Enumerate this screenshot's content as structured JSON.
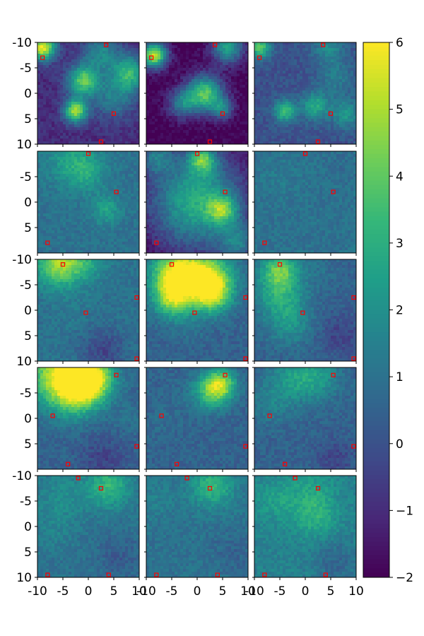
{
  "chart_data": {
    "type": "heatmap",
    "grid": {
      "rows": 5,
      "cols": 3
    },
    "x_ticks": [
      "-10",
      "-5",
      "0",
      "5",
      "10"
    ],
    "y_ticks_row0": [
      "-10",
      "-5",
      "0",
      "5",
      "10"
    ],
    "y_ticks_inner": [
      "-5",
      "0",
      "5"
    ],
    "y_ticks_row2": [
      "-10",
      "-5",
      "0",
      "5",
      "10"
    ],
    "y_ticks_last": [
      "-10",
      "-5",
      "0",
      "5",
      "10"
    ],
    "xlim": [
      -10,
      10
    ],
    "ylim": [
      -10,
      10
    ],
    "y_inverted": true,
    "colormap": "viridis",
    "colorbar": {
      "min": -2,
      "max": 6,
      "ticks": [
        "6",
        "5",
        "4",
        "3",
        "2",
        "1",
        "0",
        "−1",
        "−2"
      ]
    },
    "marker_color": "#ff0000",
    "rows": [
      {
        "markers": [
          [
            3.5,
            -10
          ],
          [
            -9,
            -7
          ],
          [
            5,
            4
          ],
          [
            2.5,
            10
          ]
        ],
        "panels": [
          {
            "background": -1.0,
            "blobs": [
              [
                -9,
                -9,
                1.8,
                6.5
              ],
              [
                -1,
                -2.5,
                2.2,
                4.5
              ],
              [
                -2.5,
                3.5,
                1.6,
                5.5
              ],
              [
                8,
                -4,
                2.5,
                3.5
              ],
              [
                2.5,
                -8,
                2.5,
                2.0
              ],
              [
                5,
                1,
                3.0,
                1.5
              ]
            ]
          },
          {
            "background": -2.0,
            "blobs": [
              [
                -8.5,
                -7.5,
                1.8,
                6.0
              ],
              [
                1.5,
                0,
                2.5,
                4.5
              ],
              [
                6,
                -9,
                2.2,
                3.0
              ],
              [
                -3,
                2,
                2.0,
                1.5
              ],
              [
                5,
                3,
                1.5,
                1.5
              ]
            ]
          },
          {
            "background": 0.0,
            "blobs": [
              [
                -9,
                -9,
                1.5,
                4.5
              ],
              [
                -4,
                3.5,
                1.5,
                4.0
              ],
              [
                2,
                2.5,
                2.0,
                3.0
              ],
              [
                8,
                4,
                2.0,
                2.5
              ],
              [
                4.5,
                -9,
                2.2,
                2.0
              ],
              [
                6,
                -3,
                2.5,
                1.5
              ]
            ]
          }
        ]
      },
      {
        "markers": [
          [
            0,
            -10
          ],
          [
            5.5,
            -2
          ],
          [
            -8,
            8
          ]
        ],
        "panels": [
          {
            "background": 1.0,
            "blobs": [
              [
                -3,
                -8,
                3.5,
                2.8
              ],
              [
                0,
                -5.5,
                2.5,
                2.2
              ],
              [
                3.5,
                1.5,
                2.0,
                2.8
              ],
              [
                -8,
                4,
                3.0,
                1.0
              ],
              [
                7,
                -8,
                2.5,
                1.0
              ]
            ]
          },
          {
            "background": -2.0,
            "blobs": [
              [
                0,
                0,
                6.5,
                3.5
              ],
              [
                1,
                -8.5,
                2.0,
                3.0
              ],
              [
                5,
                1.5,
                2.0,
                2.0
              ],
              [
                -8,
                -9,
                2.5,
                1.0
              ],
              [
                8,
                8,
                2.5,
                1.0
              ]
            ]
          },
          {
            "background": 1.0,
            "blobs": [
              [
                -5,
                -5,
                3.0,
                1.3
              ],
              [
                4,
                0,
                3.0,
                1.0
              ],
              [
                -7,
                7,
                2.5,
                1.0
              ],
              [
                7,
                -8,
                2.5,
                0.8
              ]
            ]
          }
        ]
      },
      {
        "markers": [
          [
            -5,
            -9
          ],
          [
            10,
            -2.5
          ],
          [
            -0.5,
            0.5
          ],
          [
            10,
            10
          ]
        ],
        "panels": [
          {
            "background": 1.0,
            "blobs": [
              [
                -6,
                -9,
                3.0,
                5.0
              ],
              [
                -1,
                -10,
                3.0,
                3.0
              ],
              [
                -3,
                0,
                2.5,
                1.3
              ],
              [
                8,
                -7,
                2.5,
                1.0
              ],
              [
                3,
                8,
                3.0,
                -0.5
              ]
            ]
          },
          {
            "background": 0.5,
            "blobs": [
              [
                -4,
                -7,
                3.5,
                6.5
              ],
              [
                2,
                -6,
                3.5,
                6.0
              ],
              [
                -5,
                -2,
                2.5,
                4.0
              ],
              [
                3,
                -3,
                2.5,
                3.5
              ],
              [
                -2,
                3,
                2.5,
                1.0
              ]
            ]
          },
          {
            "background": 0.5,
            "blobs": [
              [
                -5,
                -8,
                2.5,
                4.0
              ],
              [
                -5,
                -3,
                3.5,
                3.0
              ],
              [
                -3,
                3,
                3.0,
                2.0
              ],
              [
                3,
                -8,
                2.5,
                1.0
              ],
              [
                7,
                5,
                3.0,
                -0.5
              ]
            ]
          }
        ]
      },
      {
        "markers": [
          [
            5.5,
            -8.5
          ],
          [
            -7,
            -0.5
          ],
          [
            9.5,
            5.5
          ],
          [
            -4,
            9
          ]
        ],
        "panels": [
          {
            "background": 0.5,
            "blobs": [
              [
                -5,
                -8.5,
                4.5,
                6.5
              ],
              [
                1,
                -8,
                3.0,
                5.0
              ],
              [
                -2,
                -5,
                3.0,
                3.5
              ],
              [
                8,
                0,
                2.5,
                1.0
              ],
              [
                3,
                8,
                3.0,
                -0.5
              ]
            ]
          },
          {
            "background": 0.5,
            "blobs": [
              [
                3,
                -5.5,
                2.5,
                4.5
              ],
              [
                5,
                -7,
                2.0,
                3.5
              ],
              [
                -7,
                1,
                3.0,
                0.8
              ],
              [
                -3,
                -4,
                3.0,
                0.7
              ]
            ]
          },
          {
            "background": 0.5,
            "blobs": [
              [
                -2,
                -8,
                3.5,
                2.5
              ],
              [
                3,
                -8,
                3.0,
                2.0
              ],
              [
                -7,
                -3,
                3.0,
                1.5
              ],
              [
                6,
                8,
                2.5,
                -0.5
              ]
            ]
          }
        ]
      },
      {
        "markers": [
          [
            -2,
            -10
          ],
          [
            2.5,
            -7.5
          ],
          [
            -8,
            10
          ],
          [
            4,
            10
          ]
        ],
        "panels": [
          {
            "background": 1.0,
            "blobs": [
              [
                4,
                -8,
                3.0,
                3.5
              ],
              [
                -5,
                -6,
                3.5,
                2.0
              ],
              [
                -7,
                1,
                3.0,
                1.5
              ],
              [
                6,
                6,
                3.0,
                0.2
              ]
            ]
          },
          {
            "background": 1.0,
            "blobs": [
              [
                3,
                -8,
                3.0,
                3.5
              ],
              [
                -8,
                -5,
                3.0,
                1.5
              ],
              [
                -7,
                3,
                3.0,
                1.0
              ],
              [
                7,
                5,
                3.0,
                0.5
              ]
            ]
          },
          {
            "background": 1.5,
            "blobs": [
              [
                1,
                -7,
                3.5,
                2.5
              ],
              [
                -6,
                -5,
                3.0,
                2.5
              ],
              [
                2,
                -2,
                3.0,
                3.0
              ],
              [
                -5,
                2,
                2.5,
                1.5
              ],
              [
                6,
                7,
                3.0,
                0.5
              ]
            ]
          }
        ]
      }
    ]
  }
}
